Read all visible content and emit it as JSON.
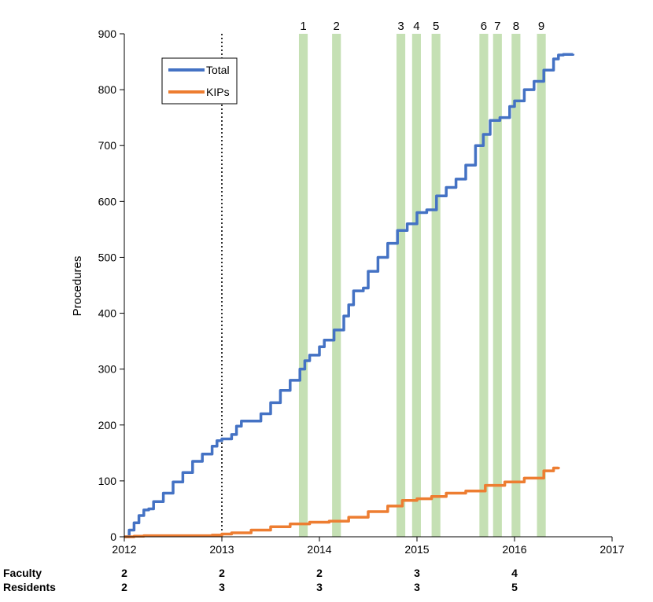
{
  "chart_data": {
    "type": "line",
    "title": "",
    "xlabel": "",
    "ylabel": "Procedures",
    "xlim": [
      2012,
      2017
    ],
    "ylim": [
      0,
      900
    ],
    "x_ticks": [
      "2012",
      "2013",
      "2014",
      "2015",
      "2016",
      "2017"
    ],
    "y_ticks": [
      "0",
      "100",
      "200",
      "300",
      "400",
      "500",
      "600",
      "700",
      "800",
      "900"
    ],
    "grid": false,
    "legend_position": "top-left",
    "reference_line": {
      "x": 2013,
      "style": "dotted"
    },
    "highlight_bands": [
      {
        "label": "1",
        "start": 2013.79,
        "end": 2013.88
      },
      {
        "label": "2",
        "start": 2014.13,
        "end": 2014.22
      },
      {
        "label": "3",
        "start": 2014.79,
        "end": 2014.88
      },
      {
        "label": "4",
        "start": 2014.95,
        "end": 2015.04
      },
      {
        "label": "5",
        "start": 2015.15,
        "end": 2015.24
      },
      {
        "label": "6",
        "start": 2015.64,
        "end": 2015.73
      },
      {
        "label": "7",
        "start": 2015.78,
        "end": 2015.87
      },
      {
        "label": "8",
        "start": 2015.97,
        "end": 2016.06
      },
      {
        "label": "9",
        "start": 2016.23,
        "end": 2016.32
      }
    ],
    "series": [
      {
        "name": "Total",
        "color": "#4472C4",
        "points": [
          [
            2012.0,
            0
          ],
          [
            2012.05,
            12
          ],
          [
            2012.1,
            25
          ],
          [
            2012.15,
            38
          ],
          [
            2012.2,
            48
          ],
          [
            2012.25,
            50
          ],
          [
            2012.3,
            63
          ],
          [
            2012.4,
            78
          ],
          [
            2012.5,
            98
          ],
          [
            2012.6,
            115
          ],
          [
            2012.7,
            135
          ],
          [
            2012.8,
            148
          ],
          [
            2012.9,
            162
          ],
          [
            2012.95,
            172
          ],
          [
            2013.0,
            175
          ],
          [
            2013.1,
            183
          ],
          [
            2013.15,
            198
          ],
          [
            2013.2,
            207
          ],
          [
            2013.3,
            207
          ],
          [
            2013.4,
            220
          ],
          [
            2013.5,
            240
          ],
          [
            2013.6,
            262
          ],
          [
            2013.7,
            280
          ],
          [
            2013.8,
            300
          ],
          [
            2013.85,
            315
          ],
          [
            2013.9,
            325
          ],
          [
            2014.0,
            340
          ],
          [
            2014.05,
            352
          ],
          [
            2014.1,
            352
          ],
          [
            2014.15,
            370
          ],
          [
            2014.25,
            395
          ],
          [
            2014.3,
            415
          ],
          [
            2014.35,
            440
          ],
          [
            2014.45,
            445
          ],
          [
            2014.5,
            475
          ],
          [
            2014.6,
            500
          ],
          [
            2014.7,
            525
          ],
          [
            2014.8,
            548
          ],
          [
            2014.9,
            560
          ],
          [
            2015.0,
            580
          ],
          [
            2015.1,
            585
          ],
          [
            2015.2,
            610
          ],
          [
            2015.3,
            625
          ],
          [
            2015.4,
            640
          ],
          [
            2015.5,
            665
          ],
          [
            2015.6,
            700
          ],
          [
            2015.68,
            720
          ],
          [
            2015.75,
            745
          ],
          [
            2015.85,
            750
          ],
          [
            2015.95,
            770
          ],
          [
            2016.0,
            780
          ],
          [
            2016.1,
            800
          ],
          [
            2016.2,
            815
          ],
          [
            2016.3,
            835
          ],
          [
            2016.4,
            855
          ],
          [
            2016.45,
            862
          ],
          [
            2016.5,
            863
          ],
          [
            2016.6,
            864
          ]
        ]
      },
      {
        "name": "KIPs",
        "color": "#ED7D31",
        "points": [
          [
            2012.0,
            0
          ],
          [
            2012.1,
            1
          ],
          [
            2012.2,
            2
          ],
          [
            2012.5,
            2
          ],
          [
            2012.9,
            3
          ],
          [
            2013.0,
            5
          ],
          [
            2013.1,
            7
          ],
          [
            2013.3,
            12
          ],
          [
            2013.5,
            18
          ],
          [
            2013.7,
            23
          ],
          [
            2013.9,
            26
          ],
          [
            2014.1,
            28
          ],
          [
            2014.3,
            35
          ],
          [
            2014.5,
            45
          ],
          [
            2014.7,
            55
          ],
          [
            2014.85,
            65
          ],
          [
            2015.0,
            68
          ],
          [
            2015.15,
            72
          ],
          [
            2015.3,
            78
          ],
          [
            2015.5,
            82
          ],
          [
            2015.7,
            92
          ],
          [
            2015.9,
            98
          ],
          [
            2016.1,
            105
          ],
          [
            2016.3,
            118
          ],
          [
            2016.4,
            123
          ],
          [
            2016.45,
            125
          ]
        ]
      }
    ],
    "staffing_rows": [
      {
        "label": "Faculty",
        "values": [
          "2",
          "2",
          "2",
          "3",
          "4"
        ]
      },
      {
        "label": "Residents",
        "values": [
          "2",
          "3",
          "3",
          "3",
          "5"
        ]
      }
    ],
    "staffing_x": [
      2012,
      2013,
      2014,
      2015,
      2016
    ]
  }
}
